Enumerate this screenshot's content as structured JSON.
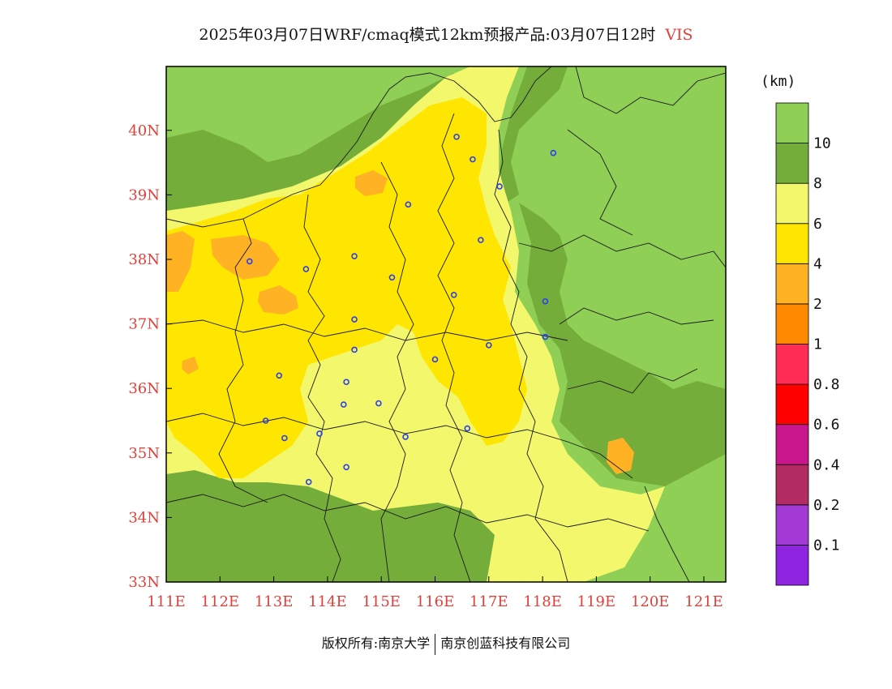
{
  "title": {
    "main": "2025年03月07日WRF/cmaq模式12km预报产品:03月07日12时",
    "variable": "VIS"
  },
  "legend": {
    "unit": "(km)",
    "colors": [
      "#8e24e0",
      "#a33ad6",
      "#b22c63",
      "#c8178a",
      "#ff0000",
      "#ff2d55",
      "#ff8a00",
      "#ffb224",
      "#ffe600",
      "#f2f76b",
      "#74ad3a",
      "#8fcf55"
    ],
    "labels": [
      "0.1",
      "0.2",
      "0.4",
      "0.6",
      "0.8",
      "1",
      "2",
      "4",
      "6",
      "8",
      "10"
    ]
  },
  "axes": {
    "lon_labels": [
      "111E",
      "112E",
      "113E",
      "114E",
      "115E",
      "116E",
      "117E",
      "118E",
      "119E",
      "120E",
      "121E"
    ],
    "lat_labels": [
      "33N",
      "34N",
      "35N",
      "36N",
      "37N",
      "38N",
      "39N",
      "40N"
    ]
  },
  "stations": [
    {
      "lon": 116.4,
      "lat": 39.9
    },
    {
      "lon": 116.7,
      "lat": 39.55
    },
    {
      "lon": 117.2,
      "lat": 39.13
    },
    {
      "lon": 118.2,
      "lat": 39.65
    },
    {
      "lon": 115.5,
      "lat": 38.85
    },
    {
      "lon": 116.85,
      "lat": 38.3
    },
    {
      "lon": 112.55,
      "lat": 37.97
    },
    {
      "lon": 113.6,
      "lat": 37.85
    },
    {
      "lon": 114.5,
      "lat": 38.05
    },
    {
      "lon": 115.2,
      "lat": 37.72
    },
    {
      "lon": 116.35,
      "lat": 37.45
    },
    {
      "lon": 118.05,
      "lat": 37.35
    },
    {
      "lon": 118.05,
      "lat": 36.8
    },
    {
      "lon": 114.5,
      "lat": 37.07
    },
    {
      "lon": 117.0,
      "lat": 36.67
    },
    {
      "lon": 114.5,
      "lat": 36.6
    },
    {
      "lon": 116.0,
      "lat": 36.45
    },
    {
      "lon": 113.1,
      "lat": 36.2
    },
    {
      "lon": 114.35,
      "lat": 36.1
    },
    {
      "lon": 114.3,
      "lat": 35.75
    },
    {
      "lon": 114.95,
      "lat": 35.77
    },
    {
      "lon": 112.85,
      "lat": 35.5
    },
    {
      "lon": 113.2,
      "lat": 35.23
    },
    {
      "lon": 113.85,
      "lat": 35.3
    },
    {
      "lon": 115.45,
      "lat": 35.25
    },
    {
      "lon": 116.6,
      "lat": 35.38
    },
    {
      "lon": 114.35,
      "lat": 34.78
    },
    {
      "lon": 113.65,
      "lat": 34.55
    }
  ],
  "footer": {
    "left": "版权所有:南京大学",
    "right": "南京创蓝科技有限公司"
  }
}
